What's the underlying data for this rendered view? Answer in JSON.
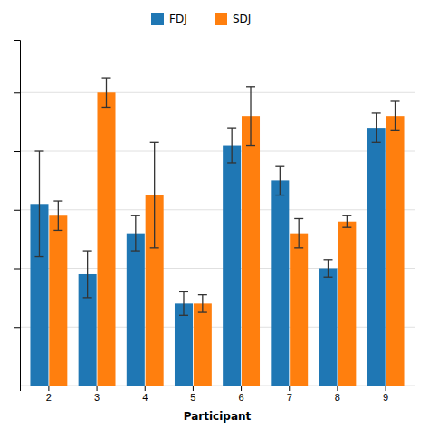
{
  "chart_data": {
    "type": "bar",
    "xlabel": "Participant",
    "categories": [
      "2",
      "3",
      "4",
      "5",
      "6",
      "7",
      "8",
      "9"
    ],
    "series": [
      {
        "name": "FDJ",
        "values": [
          0.62,
          0.38,
          0.52,
          0.28,
          0.82,
          0.7,
          0.4,
          0.88
        ],
        "errors": [
          0.18,
          0.08,
          0.06,
          0.04,
          0.06,
          0.05,
          0.03,
          0.05
        ]
      },
      {
        "name": "SDJ",
        "values": [
          0.58,
          1.0,
          0.65,
          0.28,
          0.92,
          0.52,
          0.56,
          0.92
        ],
        "errors": [
          0.05,
          0.05,
          0.18,
          0.03,
          0.1,
          0.05,
          0.02,
          0.05
        ]
      }
    ],
    "ylim": [
      0,
      1.18
    ],
    "yticks": [
      0.0,
      0.2,
      0.4,
      0.6,
      0.8,
      1.0
    ],
    "grid": true,
    "legend": "top",
    "tick_labels": "x"
  }
}
